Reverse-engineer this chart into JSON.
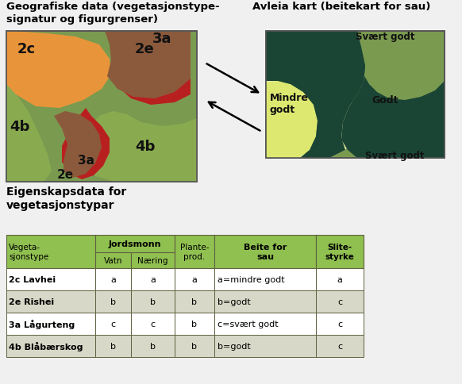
{
  "bg_color": "#f0f0f0",
  "title_geo": "Geografiske data (vegetasjonstype-\nsignatur og figurgrenser)",
  "title_avleia": "Avleia kart (beitekart for sau)",
  "title_eigen": "Eigenskapsdata for\nvegetasjonstypar",
  "lmap_bg": "#7a9a50",
  "lmap_4b": "#8aaa50",
  "lmap_2c": "#e8943a",
  "lmap_2e": "#8b5a3c",
  "lmap_3a": "#b82020",
  "rmap_bg": "#7a9a50",
  "rmap_mg": "#dde870",
  "rmap_godt": "#e8e8a0",
  "rmap_sg": "#1a4535",
  "table_hdr_bg": "#90c050",
  "table_row0": "#ffffff",
  "table_row1": "#d8d8c8",
  "table_border": "#606040",
  "table_rows": [
    [
      "2c Lavhei",
      "a",
      "a",
      "a",
      "a=mindre godt",
      "a"
    ],
    [
      "2e Rishei",
      "b",
      "b",
      "b",
      "b=godt",
      "c"
    ],
    [
      "3a Lågurteng",
      "c",
      "c",
      "b",
      "c=svært godt",
      "c"
    ],
    [
      "4b Blåbærskog",
      "b",
      "b",
      "b",
      "b=godt",
      "c"
    ]
  ]
}
